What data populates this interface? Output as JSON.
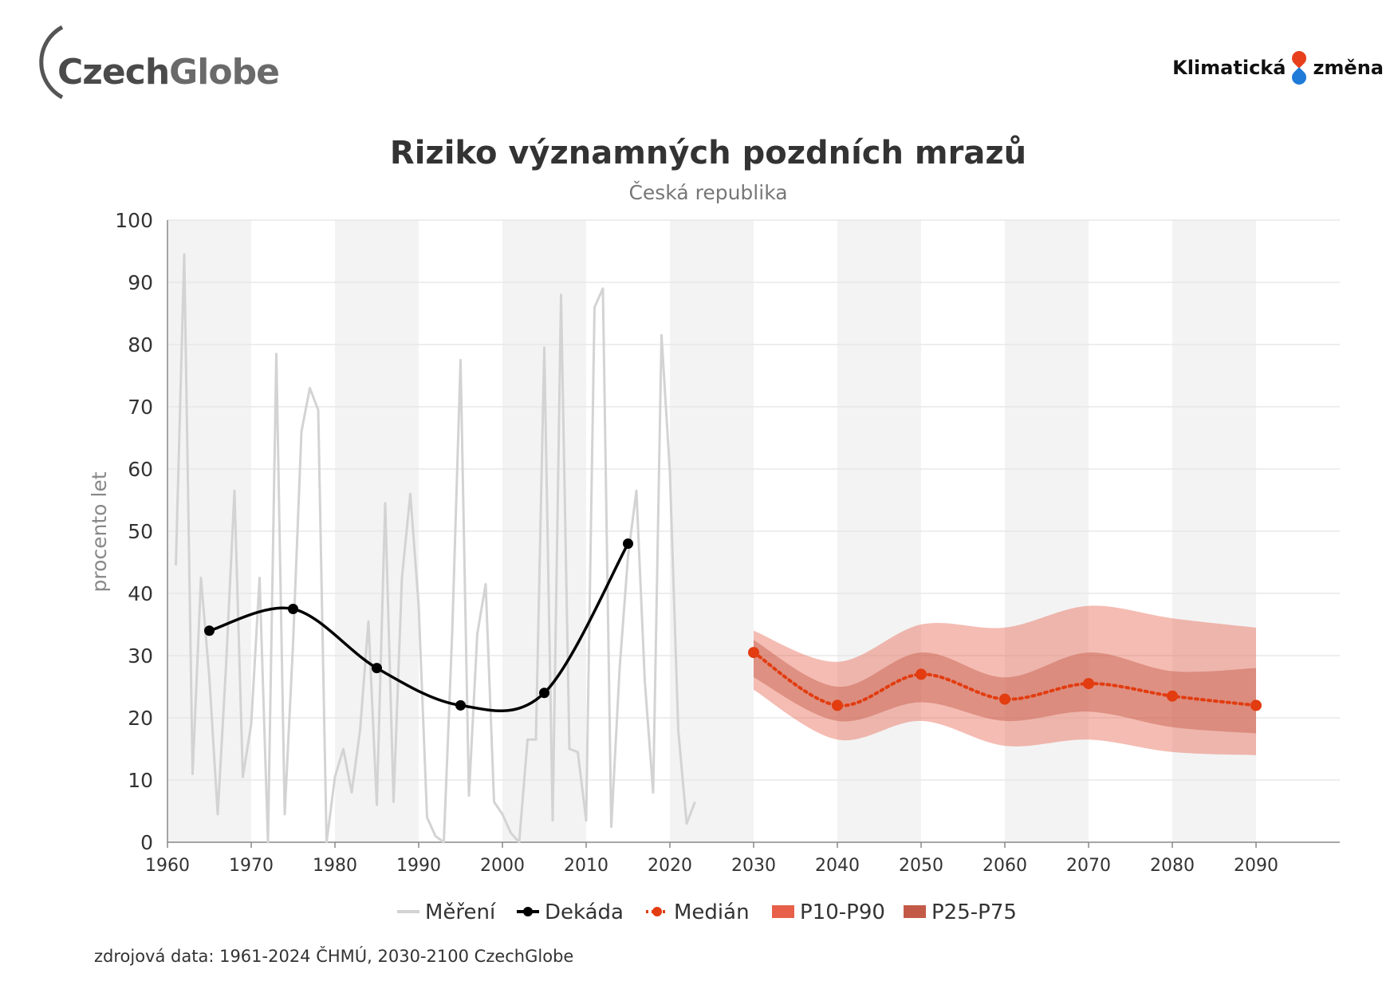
{
  "logos": {
    "left_part1": "Czech",
    "left_part2": "Globe",
    "right_part1": "Klimatická",
    "right_part2": "změna"
  },
  "source_note": "zdrojová data: 1961-2024 ČHMÚ, 2030-2100 CzechGlobe",
  "colors": {
    "measurement": "#d3d3d3",
    "decade": "#000000",
    "median": "#e23c10",
    "p10_p90": "#e8604a",
    "p25_p75": "#c35a48",
    "band_light": "#f3f3f3"
  },
  "chart_data": {
    "type": "line",
    "title": "Riziko významných pozdních mrazů",
    "subtitle": "Česká republika",
    "ylabel": "procento let",
    "xlabel": "",
    "xlim": [
      1960,
      2100
    ],
    "ylim": [
      0,
      100
    ],
    "x_ticks": [
      1960,
      1970,
      1980,
      1990,
      2000,
      2010,
      2020,
      2030,
      2040,
      2050,
      2060,
      2070,
      2080,
      2090
    ],
    "y_ticks": [
      0,
      10,
      20,
      30,
      40,
      50,
      60,
      70,
      80,
      90,
      100
    ],
    "grid": true,
    "legend_position": "bottom-center",
    "series": [
      {
        "name": "Měření",
        "style": "line",
        "x": [
          1961,
          1962,
          1963,
          1964,
          1965,
          1966,
          1967,
          1968,
          1969,
          1970,
          1971,
          1972,
          1973,
          1974,
          1975,
          1976,
          1977,
          1978,
          1979,
          1980,
          1981,
          1982,
          1983,
          1984,
          1985,
          1986,
          1987,
          1988,
          1989,
          1990,
          1991,
          1992,
          1993,
          1994,
          1995,
          1996,
          1997,
          1998,
          1999,
          2000,
          2001,
          2002,
          2003,
          2004,
          2005,
          2006,
          2007,
          2008,
          2009,
          2010,
          2011,
          2012,
          2013,
          2014,
          2015,
          2016,
          2017,
          2018,
          2019,
          2020,
          2021,
          2022,
          2023
        ],
        "y": [
          44.5,
          94.5,
          11,
          42.5,
          26.5,
          4.5,
          28.5,
          56.5,
          10.5,
          19,
          42.5,
          0,
          78.5,
          4.5,
          32,
          66,
          73,
          69.5,
          0,
          10.5,
          15,
          8,
          18,
          35.5,
          6,
          54.5,
          6.5,
          42.5,
          56,
          38,
          4,
          1,
          0,
          33.5,
          77.5,
          7.5,
          33.5,
          41.5,
          6.5,
          4.5,
          1.5,
          0,
          16.5,
          16.5,
          79.5,
          3.5,
          88,
          15,
          14.5,
          3.5,
          86,
          89,
          2.5,
          28,
          46,
          56.5,
          26,
          8,
          81.5,
          59.5,
          18,
          3,
          6.5
        ]
      },
      {
        "name": "Dekáda",
        "style": "line-marker",
        "x": [
          1965,
          1975,
          1985,
          1995,
          2005,
          2015
        ],
        "y": [
          34,
          37.5,
          28,
          22,
          24,
          48
        ]
      },
      {
        "name": "Medián",
        "style": "dotted-marker",
        "x": [
          2030,
          2040,
          2050,
          2060,
          2070,
          2080,
          2090
        ],
        "y": [
          30.5,
          22,
          27,
          23,
          25.5,
          23.5,
          22
        ]
      },
      {
        "name": "P10-P90",
        "style": "band",
        "x": [
          2030,
          2040,
          2050,
          2060,
          2070,
          2080,
          2090
        ],
        "low": [
          24.5,
          16.5,
          19.5,
          15.5,
          16.5,
          14.5,
          14
        ],
        "high": [
          34,
          29,
          35,
          34.5,
          38,
          36,
          34.5
        ]
      },
      {
        "name": "P25-P75",
        "style": "band",
        "x": [
          2030,
          2040,
          2050,
          2060,
          2070,
          2080,
          2090
        ],
        "low": [
          26.5,
          19.5,
          22.5,
          19.5,
          21,
          18.5,
          17.5
        ],
        "high": [
          32.5,
          25,
          30.5,
          26.5,
          30.5,
          27.5,
          28
        ]
      }
    ]
  }
}
